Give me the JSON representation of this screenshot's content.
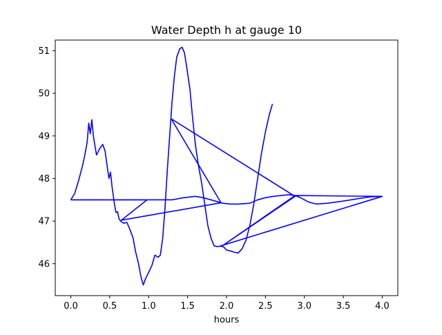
{
  "chart_data": {
    "type": "line",
    "title": "Water Depth h at gauge 10",
    "xlabel": "hours",
    "ylabel": "",
    "xlim": [
      -0.2,
      4.2
    ],
    "ylim": [
      45.25,
      51.25
    ],
    "xticks": [
      0.0,
      0.5,
      1.0,
      1.5,
      2.0,
      2.5,
      3.0,
      3.5,
      4.0
    ],
    "xtick_labels": [
      "0.0",
      "0.5",
      "1.0",
      "1.5",
      "2.0",
      "2.5",
      "3.0",
      "3.5",
      "4.0"
    ],
    "yticks": [
      46,
      47,
      48,
      49,
      50,
      51
    ],
    "ytick_labels": [
      "46",
      "47",
      "48",
      "49",
      "50",
      "51"
    ],
    "grid": false,
    "series": [
      {
        "color": "#0000ff",
        "points": [
          [
            0.0,
            47.5
          ],
          [
            0.05,
            47.65
          ],
          [
            0.1,
            47.95
          ],
          [
            0.15,
            48.3
          ],
          [
            0.18,
            48.55
          ],
          [
            0.21,
            48.85
          ],
          [
            0.23,
            49.3
          ],
          [
            0.25,
            49.05
          ],
          [
            0.27,
            49.38
          ],
          [
            0.29,
            49.0
          ],
          [
            0.33,
            48.55
          ],
          [
            0.37,
            48.7
          ],
          [
            0.41,
            48.8
          ],
          [
            0.44,
            48.65
          ],
          [
            0.47,
            48.25
          ],
          [
            0.49,
            48.0
          ],
          [
            0.51,
            48.15
          ],
          [
            0.53,
            47.8
          ],
          [
            0.56,
            47.4
          ],
          [
            0.58,
            47.2
          ],
          [
            0.6,
            47.22
          ],
          [
            0.62,
            47.05
          ],
          [
            0.65,
            46.98
          ],
          [
            0.68,
            46.95
          ],
          [
            0.72,
            46.97
          ],
          [
            0.76,
            46.8
          ],
          [
            0.8,
            46.6
          ],
          [
            0.83,
            46.3
          ],
          [
            0.87,
            46.0
          ],
          [
            0.9,
            45.7
          ],
          [
            0.93,
            45.5
          ],
          [
            0.96,
            45.65
          ],
          [
            1.0,
            45.8
          ],
          [
            1.04,
            45.95
          ],
          [
            1.08,
            46.2
          ],
          [
            1.12,
            46.15
          ],
          [
            1.15,
            46.2
          ],
          [
            1.18,
            46.6
          ],
          [
            1.21,
            47.3
          ],
          [
            1.24,
            48.2
          ],
          [
            1.27,
            49.0
          ],
          [
            1.3,
            49.8
          ],
          [
            1.33,
            50.4
          ],
          [
            1.36,
            50.85
          ],
          [
            1.4,
            51.05
          ],
          [
            1.43,
            51.08
          ],
          [
            1.46,
            50.95
          ],
          [
            1.49,
            50.6
          ],
          [
            1.53,
            50.1
          ],
          [
            1.56,
            49.5
          ],
          [
            1.6,
            48.8
          ],
          [
            1.64,
            48.3
          ],
          [
            1.68,
            47.9
          ],
          [
            1.72,
            47.4
          ],
          [
            1.76,
            46.9
          ],
          [
            1.8,
            46.6
          ],
          [
            1.84,
            46.42
          ],
          [
            1.88,
            46.4
          ],
          [
            1.94,
            46.42
          ],
          [
            1.97,
            46.38
          ],
          [
            2.0,
            46.32
          ],
          [
            2.05,
            46.3
          ],
          [
            2.1,
            46.27
          ],
          [
            2.15,
            46.25
          ],
          [
            2.2,
            46.35
          ],
          [
            2.25,
            46.55
          ],
          [
            2.3,
            46.9
          ],
          [
            2.35,
            47.4
          ],
          [
            2.4,
            48.0
          ],
          [
            2.45,
            48.6
          ],
          [
            2.5,
            49.1
          ],
          [
            2.55,
            49.5
          ],
          [
            2.59,
            49.75
          ]
        ]
      },
      {
        "color": "#0000ff",
        "points": [
          [
            0.0,
            47.5
          ],
          [
            0.5,
            47.5
          ],
          [
            1.0,
            47.5
          ],
          [
            1.3,
            47.5
          ],
          [
            1.45,
            47.55
          ],
          [
            1.6,
            47.58
          ],
          [
            1.7,
            47.55
          ],
          [
            1.8,
            47.5
          ],
          [
            1.95,
            47.42
          ],
          [
            2.05,
            47.4
          ],
          [
            2.15,
            47.4
          ],
          [
            2.3,
            47.42
          ],
          [
            2.4,
            47.5
          ],
          [
            2.5,
            47.55
          ],
          [
            2.6,
            47.58
          ],
          [
            2.7,
            47.6
          ],
          [
            2.8,
            47.62
          ],
          [
            2.88,
            47.6
          ],
          [
            2.95,
            47.55
          ],
          [
            3.05,
            47.45
          ],
          [
            3.15,
            47.4
          ],
          [
            3.3,
            47.42
          ],
          [
            3.5,
            47.47
          ],
          [
            3.7,
            47.53
          ],
          [
            3.85,
            47.57
          ],
          [
            4.0,
            47.58
          ]
        ]
      },
      {
        "color": "#0000ff",
        "points": [
          [
            0.0,
            47.5
          ],
          [
            0.98,
            47.5
          ],
          [
            0.65,
            47.02
          ],
          [
            1.93,
            47.43
          ],
          [
            1.29,
            49.4
          ],
          [
            2.88,
            47.58
          ],
          [
            1.93,
            46.4
          ],
          [
            2.88,
            47.6
          ],
          [
            4.0,
            47.58
          ],
          [
            1.93,
            46.42
          ]
        ]
      }
    ]
  }
}
